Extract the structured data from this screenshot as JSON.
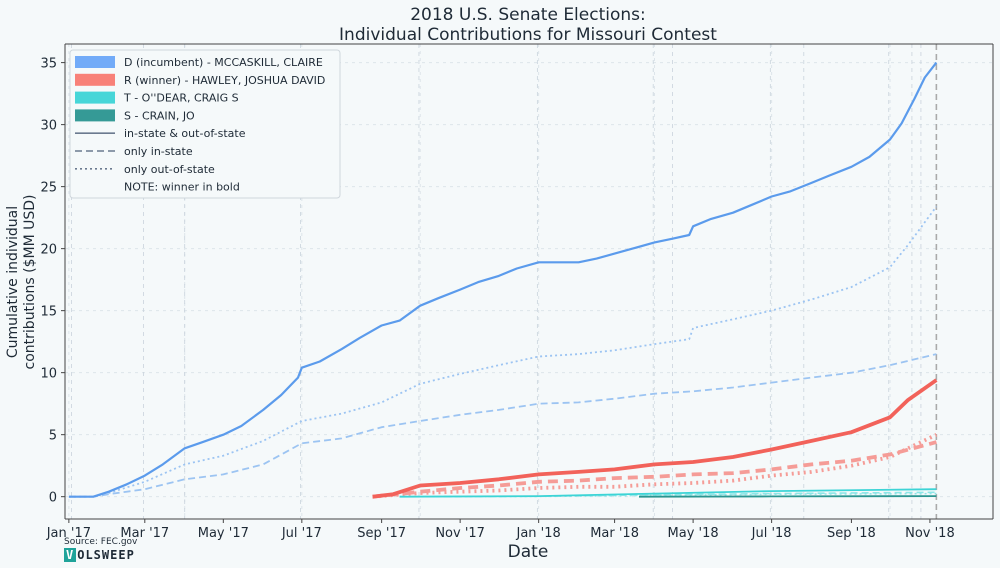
{
  "title_lines": [
    "2018 U.S. Senate Elections:",
    "Individual Contributions for Missouri Contest"
  ],
  "source": "Source: FEC.gov",
  "logo": {
    "mark": "V",
    "rest": "OLSWEEP",
    "color": "#1fa39a"
  },
  "chart_data": {
    "type": "line",
    "xlabel": "Date",
    "ylabel": "Cumulative individual contributions ($MM USD)",
    "ylabel_lines": [
      "Cumulative individual",
      "contributions ($MM USD)"
    ],
    "xlim": [
      "2016-12-29",
      "2018-12-20"
    ],
    "ylim": [
      -1.8,
      36.5
    ],
    "x_ticks": [
      {
        "date": "2017-01-01",
        "label": "Jan '17"
      },
      {
        "date": "2017-03-01",
        "label": "Mar '17"
      },
      {
        "date": "2017-05-01",
        "label": "May '17"
      },
      {
        "date": "2017-07-01",
        "label": "Jul '17"
      },
      {
        "date": "2017-09-01",
        "label": "Sep '17"
      },
      {
        "date": "2017-11-01",
        "label": "Nov '17"
      },
      {
        "date": "2018-01-01",
        "label": "Jan '18"
      },
      {
        "date": "2018-03-01",
        "label": "Mar '18"
      },
      {
        "date": "2018-05-01",
        "label": "May '18"
      },
      {
        "date": "2018-07-01",
        "label": "Jul '18"
      },
      {
        "date": "2018-09-01",
        "label": "Sep '18"
      },
      {
        "date": "2018-11-01",
        "label": "Nov '18"
      }
    ],
    "y_ticks": [
      0,
      5,
      10,
      15,
      20,
      25,
      30,
      35
    ],
    "grid": {
      "style": "dashed",
      "vertical_dates": [
        "2017-01-01",
        "2017-04-01",
        "2017-07-01",
        "2017-10-01",
        "2018-01-01",
        "2018-04-01",
        "2018-07-01",
        "2018-10-01"
      ]
    },
    "event_lines": {
      "color": "#c9d3dc",
      "dates": [
        "2017-01-03",
        "2017-02-28",
        "2017-04-01",
        "2017-06-30",
        "2017-09-30",
        "2017-12-31",
        "2018-03-31",
        "2018-04-15",
        "2018-06-30",
        "2018-07-26",
        "2018-09-30",
        "2018-10-18",
        "2018-10-25"
      ]
    },
    "election_line": {
      "date": "2018-11-06",
      "color": "#aaaaaa"
    },
    "legend": {
      "position": "top-left",
      "entries": [
        {
          "kind": "patch",
          "color": "#6aa6f8",
          "label": "D (incumbent) - MCCASKILL, CLAIRE"
        },
        {
          "kind": "patch",
          "color": "#f87a72",
          "label": "R (winner) - HAWLEY, JOSHUA DAVID"
        },
        {
          "kind": "patch",
          "color": "#3dd4d6",
          "label": "T - O''DEAR, CRAIG S"
        },
        {
          "kind": "patch",
          "color": "#2a9590",
          "label": "S - CRAIN, JO"
        },
        {
          "kind": "line",
          "style": "solid",
          "color": "#6b7a8f",
          "label": "in-state & out-of-state"
        },
        {
          "kind": "line",
          "style": "dashed",
          "color": "#6b7a8f",
          "label": "only in-state"
        },
        {
          "kind": "line",
          "style": "dotted",
          "color": "#6b7a8f",
          "label": "only out-of-state"
        },
        {
          "kind": "none",
          "label": "NOTE: winner in bold"
        }
      ]
    },
    "series": [
      {
        "candidate": "D",
        "scope": "total",
        "color": "#5b9bec",
        "width": 2.2,
        "dash": "",
        "opacity": 1,
        "points": [
          [
            "2017-01-01",
            0
          ],
          [
            "2017-01-20",
            0
          ],
          [
            "2017-02-01",
            0.4
          ],
          [
            "2017-02-15",
            1.0
          ],
          [
            "2017-03-01",
            1.7
          ],
          [
            "2017-03-15",
            2.6
          ],
          [
            "2017-04-01",
            3.9
          ],
          [
            "2017-04-15",
            4.4
          ],
          [
            "2017-05-01",
            5.0
          ],
          [
            "2017-05-15",
            5.7
          ],
          [
            "2017-06-01",
            7.0
          ],
          [
            "2017-06-15",
            8.2
          ],
          [
            "2017-06-28",
            9.6
          ],
          [
            "2017-07-01",
            10.4
          ],
          [
            "2017-07-15",
            10.9
          ],
          [
            "2017-08-01",
            11.9
          ],
          [
            "2017-08-15",
            12.8
          ],
          [
            "2017-09-01",
            13.8
          ],
          [
            "2017-09-15",
            14.2
          ],
          [
            "2017-10-01",
            15.4
          ],
          [
            "2017-10-15",
            16.0
          ],
          [
            "2017-11-01",
            16.7
          ],
          [
            "2017-11-15",
            17.3
          ],
          [
            "2017-12-01",
            17.8
          ],
          [
            "2017-12-15",
            18.4
          ],
          [
            "2018-01-01",
            18.9
          ],
          [
            "2018-01-15",
            18.9
          ],
          [
            "2018-02-01",
            18.9
          ],
          [
            "2018-02-15",
            19.2
          ],
          [
            "2018-03-01",
            19.6
          ],
          [
            "2018-03-15",
            20.0
          ],
          [
            "2018-04-01",
            20.5
          ],
          [
            "2018-04-15",
            20.8
          ],
          [
            "2018-04-28",
            21.1
          ],
          [
            "2018-05-01",
            21.8
          ],
          [
            "2018-05-15",
            22.4
          ],
          [
            "2018-06-01",
            22.9
          ],
          [
            "2018-06-15",
            23.5
          ],
          [
            "2018-07-01",
            24.2
          ],
          [
            "2018-07-15",
            24.6
          ],
          [
            "2018-08-01",
            25.3
          ],
          [
            "2018-08-15",
            25.9
          ],
          [
            "2018-09-01",
            26.6
          ],
          [
            "2018-09-15",
            27.4
          ],
          [
            "2018-10-01",
            28.8
          ],
          [
            "2018-10-10",
            30.1
          ],
          [
            "2018-10-20",
            32.1
          ],
          [
            "2018-10-28",
            33.8
          ],
          [
            "2018-11-06",
            35.0
          ]
        ]
      },
      {
        "candidate": "D",
        "scope": "out-of-state",
        "color": "#9cc4f2",
        "width": 1.8,
        "dash": "2,3",
        "opacity": 1,
        "points": [
          [
            "2017-01-01",
            0
          ],
          [
            "2017-01-20",
            0
          ],
          [
            "2017-02-01",
            0.3
          ],
          [
            "2017-03-01",
            1.2
          ],
          [
            "2017-04-01",
            2.6
          ],
          [
            "2017-05-01",
            3.3
          ],
          [
            "2017-06-01",
            4.5
          ],
          [
            "2017-07-01",
            6.1
          ],
          [
            "2017-08-01",
            6.7
          ],
          [
            "2017-09-01",
            7.6
          ],
          [
            "2017-10-01",
            9.1
          ],
          [
            "2017-11-01",
            9.9
          ],
          [
            "2017-12-01",
            10.6
          ],
          [
            "2018-01-01",
            11.3
          ],
          [
            "2018-02-01",
            11.5
          ],
          [
            "2018-03-01",
            11.8
          ],
          [
            "2018-04-01",
            12.3
          ],
          [
            "2018-04-28",
            12.7
          ],
          [
            "2018-05-01",
            13.6
          ],
          [
            "2018-06-01",
            14.3
          ],
          [
            "2018-07-01",
            15.0
          ],
          [
            "2018-08-01",
            15.9
          ],
          [
            "2018-09-01",
            16.9
          ],
          [
            "2018-10-01",
            18.5
          ],
          [
            "2018-10-15",
            20.3
          ],
          [
            "2018-11-06",
            23.4
          ]
        ]
      },
      {
        "candidate": "D",
        "scope": "in-state",
        "color": "#9cc4f2",
        "width": 1.8,
        "dash": "7,4",
        "opacity": 1,
        "points": [
          [
            "2017-01-01",
            0
          ],
          [
            "2017-01-20",
            0
          ],
          [
            "2017-02-01",
            0.2
          ],
          [
            "2017-03-01",
            0.6
          ],
          [
            "2017-04-01",
            1.4
          ],
          [
            "2017-05-01",
            1.8
          ],
          [
            "2017-06-01",
            2.6
          ],
          [
            "2017-07-01",
            4.3
          ],
          [
            "2017-08-01",
            4.7
          ],
          [
            "2017-09-01",
            5.6
          ],
          [
            "2017-10-01",
            6.1
          ],
          [
            "2017-11-01",
            6.6
          ],
          [
            "2017-12-01",
            7.0
          ],
          [
            "2018-01-01",
            7.5
          ],
          [
            "2018-02-01",
            7.6
          ],
          [
            "2018-03-01",
            7.9
          ],
          [
            "2018-04-01",
            8.3
          ],
          [
            "2018-05-01",
            8.5
          ],
          [
            "2018-06-01",
            8.8
          ],
          [
            "2018-07-01",
            9.2
          ],
          [
            "2018-08-01",
            9.6
          ],
          [
            "2018-09-01",
            10.0
          ],
          [
            "2018-10-01",
            10.6
          ],
          [
            "2018-11-06",
            11.5
          ]
        ]
      },
      {
        "candidate": "R",
        "scope": "total",
        "color": "#f2625a",
        "width": 3.8,
        "dash": "",
        "opacity": 1,
        "points": [
          [
            "2017-08-25",
            0
          ],
          [
            "2017-09-10",
            0.2
          ],
          [
            "2017-10-01",
            0.9
          ],
          [
            "2017-11-01",
            1.1
          ],
          [
            "2017-12-01",
            1.4
          ],
          [
            "2018-01-01",
            1.8
          ],
          [
            "2018-02-01",
            2.0
          ],
          [
            "2018-03-01",
            2.2
          ],
          [
            "2018-04-01",
            2.6
          ],
          [
            "2018-05-01",
            2.8
          ],
          [
            "2018-06-01",
            3.2
          ],
          [
            "2018-07-01",
            3.8
          ],
          [
            "2018-08-01",
            4.5
          ],
          [
            "2018-09-01",
            5.2
          ],
          [
            "2018-10-01",
            6.4
          ],
          [
            "2018-10-15",
            7.8
          ],
          [
            "2018-11-06",
            9.4
          ]
        ]
      },
      {
        "candidate": "R",
        "scope": "in-state",
        "color": "#f59c97",
        "width": 3.8,
        "dash": "10,6",
        "opacity": 1,
        "points": [
          [
            "2017-08-25",
            0
          ],
          [
            "2017-10-01",
            0.4
          ],
          [
            "2017-11-01",
            0.7
          ],
          [
            "2017-12-01",
            0.9
          ],
          [
            "2018-01-01",
            1.2
          ],
          [
            "2018-02-01",
            1.3
          ],
          [
            "2018-03-01",
            1.5
          ],
          [
            "2018-04-01",
            1.6
          ],
          [
            "2018-05-01",
            1.8
          ],
          [
            "2018-06-01",
            1.9
          ],
          [
            "2018-07-01",
            2.2
          ],
          [
            "2018-08-01",
            2.6
          ],
          [
            "2018-09-01",
            2.9
          ],
          [
            "2018-10-01",
            3.4
          ],
          [
            "2018-11-06",
            4.4
          ]
        ]
      },
      {
        "candidate": "R",
        "scope": "out-of-state",
        "color": "#f59c97",
        "width": 3.8,
        "dash": "2,4",
        "opacity": 1,
        "points": [
          [
            "2017-08-25",
            0
          ],
          [
            "2017-10-01",
            0.3
          ],
          [
            "2017-11-01",
            0.4
          ],
          [
            "2017-12-01",
            0.5
          ],
          [
            "2018-01-01",
            0.7
          ],
          [
            "2018-02-01",
            0.8
          ],
          [
            "2018-03-01",
            0.8
          ],
          [
            "2018-04-01",
            1.0
          ],
          [
            "2018-05-01",
            1.1
          ],
          [
            "2018-06-01",
            1.3
          ],
          [
            "2018-07-01",
            1.7
          ],
          [
            "2018-08-01",
            2.0
          ],
          [
            "2018-09-01",
            2.5
          ],
          [
            "2018-10-01",
            3.2
          ],
          [
            "2018-11-06",
            5.0
          ]
        ]
      },
      {
        "candidate": "T",
        "scope": "total",
        "color": "#3dd4d6",
        "width": 1.8,
        "dash": "",
        "opacity": 1,
        "points": [
          [
            "2017-09-15",
            0
          ],
          [
            "2018-01-01",
            0.05
          ],
          [
            "2018-04-01",
            0.25
          ],
          [
            "2018-07-01",
            0.45
          ],
          [
            "2018-11-06",
            0.6
          ]
        ]
      },
      {
        "candidate": "T",
        "scope": "in-state",
        "color": "#8de6e7",
        "width": 1.6,
        "dash": "7,4",
        "opacity": 1,
        "points": [
          [
            "2017-09-15",
            0
          ],
          [
            "2018-01-01",
            0.03
          ],
          [
            "2018-04-01",
            0.15
          ],
          [
            "2018-07-01",
            0.25
          ],
          [
            "2018-11-06",
            0.35
          ]
        ]
      },
      {
        "candidate": "T",
        "scope": "out-of-state",
        "color": "#8de6e7",
        "width": 1.6,
        "dash": "2,3",
        "opacity": 1,
        "points": [
          [
            "2017-09-15",
            0
          ],
          [
            "2018-01-01",
            0.02
          ],
          [
            "2018-04-01",
            0.1
          ],
          [
            "2018-07-01",
            0.2
          ],
          [
            "2018-11-06",
            0.25
          ]
        ]
      },
      {
        "candidate": "S",
        "scope": "total",
        "color": "#2a9590",
        "width": 1.8,
        "dash": "",
        "opacity": 1,
        "points": [
          [
            "2018-03-20",
            0
          ],
          [
            "2018-07-01",
            0.02
          ],
          [
            "2018-11-06",
            0.05
          ]
        ]
      }
    ]
  }
}
